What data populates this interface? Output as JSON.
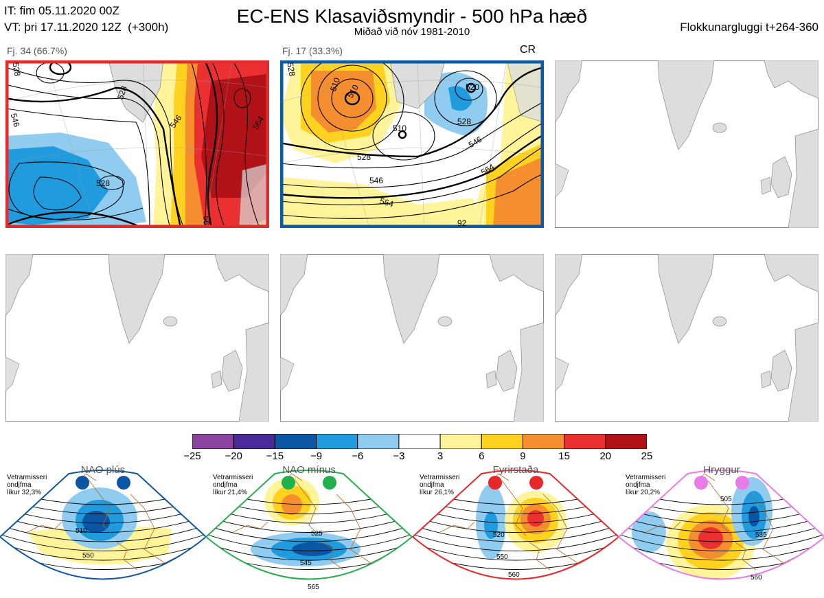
{
  "header": {
    "it_line": "IT: fim 05.11.2020 00Z",
    "vt_line": "VT: þri 17.11.2020 12Z  (+300h)",
    "title": "EC-ENS Klasaviðsmyndir - 500 hPa hæð",
    "subtitle": "Miðað við nóv 1981-2010",
    "window": "Flokkunargluggi t+264-360"
  },
  "panels": [
    {
      "label": "Fj. 34 (66.7%)",
      "border_color": "#e32b2b",
      "contours": [
        "528",
        "546",
        "528",
        "546",
        "528",
        "564",
        "56"
      ]
    },
    {
      "label": "Fj. 17 (33.3%)",
      "border_color": "#0b5aa3",
      "tag": "CR",
      "contours": [
        "528",
        "510",
        "510",
        "520",
        "510",
        "528",
        "546",
        "528",
        "546",
        "564",
        "564",
        "92"
      ]
    }
  ],
  "colorbar": {
    "ticks": [
      "−25",
      "−20",
      "−15",
      "−9",
      "−6",
      "−3",
      "3",
      "6",
      "9",
      "15",
      "20",
      "25"
    ],
    "colors": [
      "#8b44a0",
      "#4a2a9a",
      "#0b56a4",
      "#1f9bde",
      "#8fccef",
      "#ffffff",
      "#fff49a",
      "#ffd21f",
      "#f58e2f",
      "#ea3030",
      "#b01217"
    ]
  },
  "regimes": [
    {
      "name": "NAO plús",
      "stat": [
        "Vetrarmisseri",
        "ondjfma",
        "líkur 32,3%"
      ],
      "color": "#0b56a4",
      "contours": [
        "510",
        "550"
      ]
    },
    {
      "name": "NAO mínus",
      "stat": [
        "Vetrarmisseri",
        "ondjfma",
        "líkur 21,4%"
      ],
      "color": "#22b04c",
      "contours": [
        "525",
        "545",
        "565"
      ]
    },
    {
      "name": "Fyrirstaða",
      "stat": [
        "Vetrarmisseri",
        "ondjfma",
        "líkur 26,1%"
      ],
      "color": "#e8272b",
      "contours": [
        "520",
        "550",
        "560"
      ]
    },
    {
      "name": "Hryggur",
      "stat": [
        "Vetrarmisseri",
        "ondjfma",
        "líkur 20,2%"
      ],
      "color": "#e97ae7",
      "contours": [
        "505",
        "535",
        "560"
      ]
    }
  ]
}
